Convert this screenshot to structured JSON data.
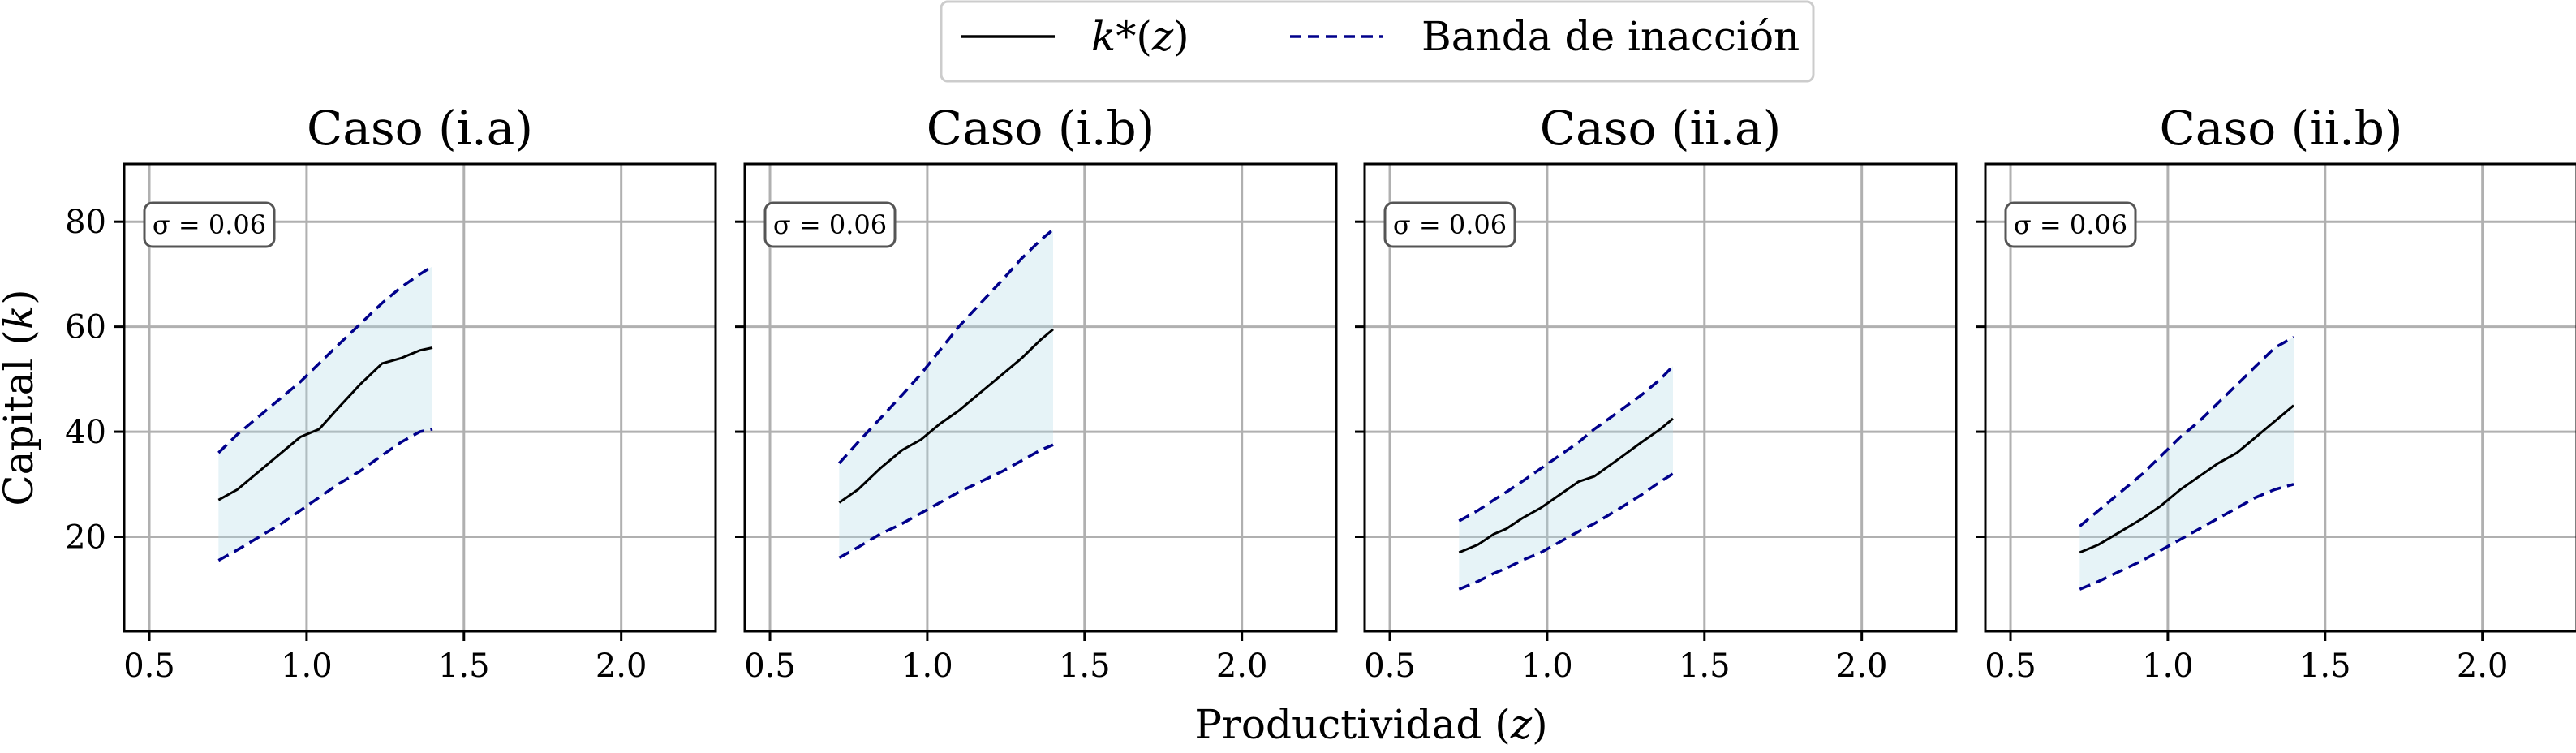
{
  "chart_data": {
    "type": "line",
    "legend": {
      "position": "top-center",
      "entries": [
        "k*(z)",
        "Banda de inacción"
      ]
    },
    "xlabel": "Productividad (z)",
    "ylabel": "Capital (k)",
    "xlim": [
      0.42,
      2.3
    ],
    "ylim": [
      2,
      91
    ],
    "xticks": [
      0.5,
      1.0,
      1.5,
      2.0
    ],
    "xtick_labels": [
      "0.5",
      "1.0",
      "1.5",
      "2.0"
    ],
    "yticks": [
      20,
      40,
      60,
      80
    ],
    "ytick_labels": [
      "20",
      "40",
      "60",
      "80"
    ],
    "grid": true,
    "panels": [
      {
        "title": "Caso (i.a)",
        "annotation": "σ = 0.06",
        "x": [
          0.72,
          0.78,
          0.85,
          0.92,
          0.98,
          1.04,
          1.1,
          1.17,
          1.24,
          1.3,
          1.36,
          1.4
        ],
        "k_star": [
          27.0,
          29.0,
          32.5,
          36.0,
          39.0,
          40.5,
          44.5,
          49.0,
          53.0,
          54.0,
          55.5,
          56.0
        ],
        "band_upper": [
          36.0,
          39.5,
          43.0,
          46.5,
          49.5,
          53.0,
          56.5,
          60.5,
          64.5,
          67.5,
          70.0,
          71.5
        ],
        "band_lower": [
          15.5,
          17.5,
          20.0,
          22.5,
          25.0,
          27.5,
          30.0,
          32.5,
          35.5,
          38.0,
          40.0,
          40.5
        ]
      },
      {
        "title": "Caso (i.b)",
        "annotation": "σ = 0.06",
        "x": [
          0.72,
          0.78,
          0.85,
          0.92,
          0.98,
          1.04,
          1.1,
          1.17,
          1.24,
          1.3,
          1.36,
          1.4
        ],
        "k_star": [
          26.5,
          29.0,
          33.0,
          36.5,
          38.5,
          41.5,
          44.0,
          47.5,
          51.0,
          54.0,
          57.5,
          59.5
        ],
        "band_upper": [
          34.0,
          38.0,
          42.5,
          47.0,
          51.0,
          55.5,
          60.0,
          64.5,
          69.0,
          73.0,
          76.5,
          78.5
        ],
        "band_lower": [
          16.0,
          18.0,
          20.5,
          22.5,
          24.5,
          26.5,
          28.5,
          30.5,
          32.5,
          34.5,
          36.5,
          37.5
        ]
      },
      {
        "title": "Caso (ii.a)",
        "annotation": "σ = 0.06",
        "x": [
          0.72,
          0.78,
          0.83,
          0.87,
          0.92,
          0.98,
          1.04,
          1.1,
          1.15,
          1.22,
          1.3,
          1.36,
          1.4
        ],
        "k_star": [
          17.0,
          18.5,
          20.5,
          21.5,
          23.5,
          25.5,
          28.0,
          30.5,
          31.5,
          34.5,
          38.0,
          40.5,
          42.5
        ],
        "band_upper": [
          23.0,
          25.0,
          27.0,
          28.5,
          30.5,
          33.0,
          35.5,
          38.0,
          40.5,
          43.5,
          47.0,
          50.0,
          52.5
        ],
        "band_lower": [
          10.0,
          11.5,
          13.0,
          14.0,
          15.5,
          17.0,
          19.0,
          21.0,
          22.5,
          25.0,
          28.0,
          30.5,
          32.0
        ]
      },
      {
        "title": "Caso (ii.b)",
        "annotation": "σ = 0.06",
        "x": [
          0.72,
          0.78,
          0.85,
          0.92,
          0.98,
          1.04,
          1.1,
          1.16,
          1.22,
          1.28,
          1.34,
          1.4
        ],
        "k_star": [
          17.0,
          18.5,
          21.0,
          23.5,
          26.0,
          29.0,
          31.5,
          34.0,
          36.0,
          39.0,
          42.0,
          45.0
        ],
        "band_upper": [
          22.0,
          25.0,
          28.5,
          32.0,
          35.5,
          39.0,
          42.0,
          45.5,
          49.0,
          52.5,
          56.0,
          58.0
        ],
        "band_lower": [
          10.0,
          11.5,
          13.5,
          15.5,
          17.5,
          19.5,
          21.5,
          23.5,
          25.5,
          27.5,
          29.0,
          30.0
        ]
      }
    ]
  }
}
